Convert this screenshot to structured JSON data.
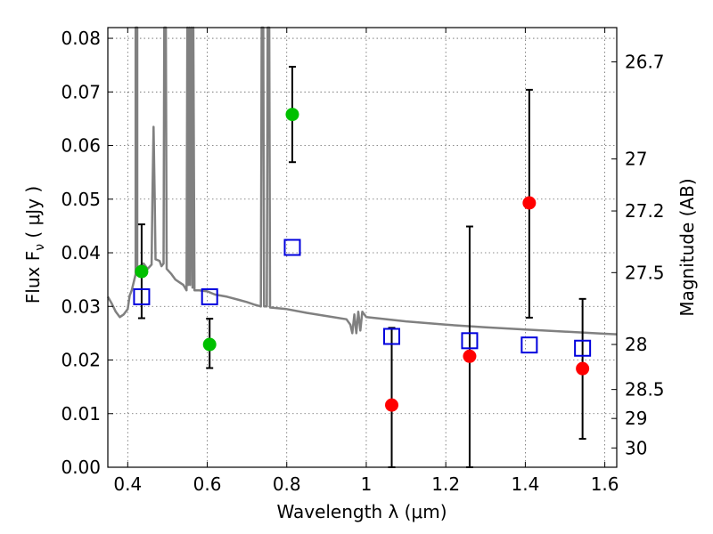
{
  "chart_data": {
    "type": "scatter",
    "xlabel": "Wavelength  λ (μm)",
    "ylabel": "Flux  F",
    "ylabel_sub": "ν",
    "ylabel_unit": " ( μJy )",
    "y2label": "Magnitude (AB)",
    "xlim": [
      0.35,
      1.63
    ],
    "ylim": [
      0.0,
      0.082
    ],
    "grid": true,
    "x_ticks": [
      0.4,
      0.6,
      0.8,
      1.0,
      1.2,
      1.4,
      1.6
    ],
    "x_tick_labels": [
      "0.4",
      "0.6",
      "0.8",
      "1",
      "1.2",
      "1.4",
      "1.6"
    ],
    "y_ticks": [
      0.0,
      0.01,
      0.02,
      0.03,
      0.04,
      0.05,
      0.06,
      0.07,
      0.08
    ],
    "y_tick_labels": [
      "0.00",
      "0.01",
      "0.02",
      "0.03",
      "0.04",
      "0.05",
      "0.06",
      "0.07",
      "0.08"
    ],
    "y2_ticks": [
      {
        "label": "26.7",
        "flux": 0.0756
      },
      {
        "label": "27",
        "flux": 0.0575
      },
      {
        "label": "27.2",
        "flux": 0.0478
      },
      {
        "label": "27.5",
        "flux": 0.0363
      },
      {
        "label": "28",
        "flux": 0.0229
      },
      {
        "label": "28.5",
        "flux": 0.0145
      },
      {
        "label": "29",
        "flux": 0.0091
      },
      {
        "label": "30",
        "flux": 0.0036
      }
    ],
    "series": [
      {
        "color": "#00c000",
        "marker": "circle",
        "points": [
          {
            "x": 0.435,
            "y": 0.0365,
            "yerr_low": 0.0087,
            "yerr_high": 0.0088
          },
          {
            "x": 0.606,
            "y": 0.0229,
            "yerr_low": 0.0044,
            "yerr_high": 0.0048
          },
          {
            "x": 0.814,
            "y": 0.0658,
            "yerr_low": 0.0089,
            "yerr_high": 0.0089
          }
        ]
      },
      {
        "color": "#ff0000",
        "marker": "circle",
        "points": [
          {
            "x": 1.064,
            "y": 0.0116,
            "yerr_low": 0.0116,
            "yerr_high": 0.0144
          },
          {
            "x": 1.26,
            "y": 0.0207,
            "yerr_low": 0.0207,
            "yerr_high": 0.0242
          },
          {
            "x": 1.41,
            "y": 0.0493,
            "yerr_low": 0.0214,
            "yerr_high": 0.0211
          },
          {
            "x": 1.544,
            "y": 0.0184,
            "yerr_low": 0.0131,
            "yerr_high": 0.013
          }
        ]
      },
      {
        "color": "#0000dd",
        "marker": "open-square",
        "points": [
          {
            "x": 0.435,
            "y": 0.0318
          },
          {
            "x": 0.606,
            "y": 0.0318
          },
          {
            "x": 0.814,
            "y": 0.041
          },
          {
            "x": 1.064,
            "y": 0.0244
          },
          {
            "x": 1.26,
            "y": 0.0236
          },
          {
            "x": 1.41,
            "y": 0.0228
          },
          {
            "x": 1.544,
            "y": 0.0222
          }
        ]
      },
      {
        "color": "#808080",
        "type": "line",
        "points": [
          [
            0.35,
            0.0318
          ],
          [
            0.36,
            0.0305
          ],
          [
            0.37,
            0.029
          ],
          [
            0.38,
            0.028
          ],
          [
            0.39,
            0.0285
          ],
          [
            0.4,
            0.0295
          ],
          [
            0.405,
            0.032
          ],
          [
            0.41,
            0.033
          ],
          [
            0.415,
            0.0345
          ],
          [
            0.42,
            0.036
          ],
          [
            0.42,
            0.082
          ],
          [
            0.424,
            0.082
          ],
          [
            0.424,
            0.037
          ],
          [
            0.43,
            0.0375
          ],
          [
            0.44,
            0.038
          ],
          [
            0.45,
            0.037
          ],
          [
            0.46,
            0.0378
          ],
          [
            0.462,
            0.05
          ],
          [
            0.465,
            0.0635
          ],
          [
            0.468,
            0.05
          ],
          [
            0.47,
            0.0388
          ],
          [
            0.48,
            0.0385
          ],
          [
            0.485,
            0.0375
          ],
          [
            0.49,
            0.038
          ],
          [
            0.492,
            0.082
          ],
          [
            0.496,
            0.082
          ],
          [
            0.498,
            0.037
          ],
          [
            0.51,
            0.036
          ],
          [
            0.52,
            0.035
          ],
          [
            0.53,
            0.0345
          ],
          [
            0.54,
            0.034
          ],
          [
            0.548,
            0.033
          ],
          [
            0.55,
            0.082
          ],
          [
            0.552,
            0.034
          ],
          [
            0.555,
            0.082
          ],
          [
            0.557,
            0.034
          ],
          [
            0.56,
            0.082
          ],
          [
            0.563,
            0.0335
          ],
          [
            0.565,
            0.082
          ],
          [
            0.568,
            0.033
          ],
          [
            0.58,
            0.033
          ],
          [
            0.6,
            0.0328
          ],
          [
            0.62,
            0.0322
          ],
          [
            0.65,
            0.0318
          ],
          [
            0.68,
            0.0312
          ],
          [
            0.7,
            0.0308
          ],
          [
            0.72,
            0.0303
          ],
          [
            0.735,
            0.03
          ],
          [
            0.737,
            0.082
          ],
          [
            0.741,
            0.082
          ],
          [
            0.743,
            0.03
          ],
          [
            0.75,
            0.03
          ],
          [
            0.752,
            0.082
          ],
          [
            0.756,
            0.082
          ],
          [
            0.758,
            0.0298
          ],
          [
            0.8,
            0.0295
          ],
          [
            0.85,
            0.0288
          ],
          [
            0.9,
            0.0282
          ],
          [
            0.95,
            0.0276
          ],
          [
            0.96,
            0.0266
          ],
          [
            0.965,
            0.025
          ],
          [
            0.97,
            0.0285
          ],
          [
            0.975,
            0.025
          ],
          [
            0.98,
            0.029
          ],
          [
            0.985,
            0.0255
          ],
          [
            0.99,
            0.029
          ],
          [
            1.0,
            0.028
          ],
          [
            1.1,
            0.0272
          ],
          [
            1.2,
            0.0266
          ],
          [
            1.3,
            0.0261
          ],
          [
            1.4,
            0.0257
          ],
          [
            1.5,
            0.0253
          ],
          [
            1.6,
            0.0249
          ],
          [
            1.63,
            0.0248
          ]
        ]
      }
    ]
  }
}
